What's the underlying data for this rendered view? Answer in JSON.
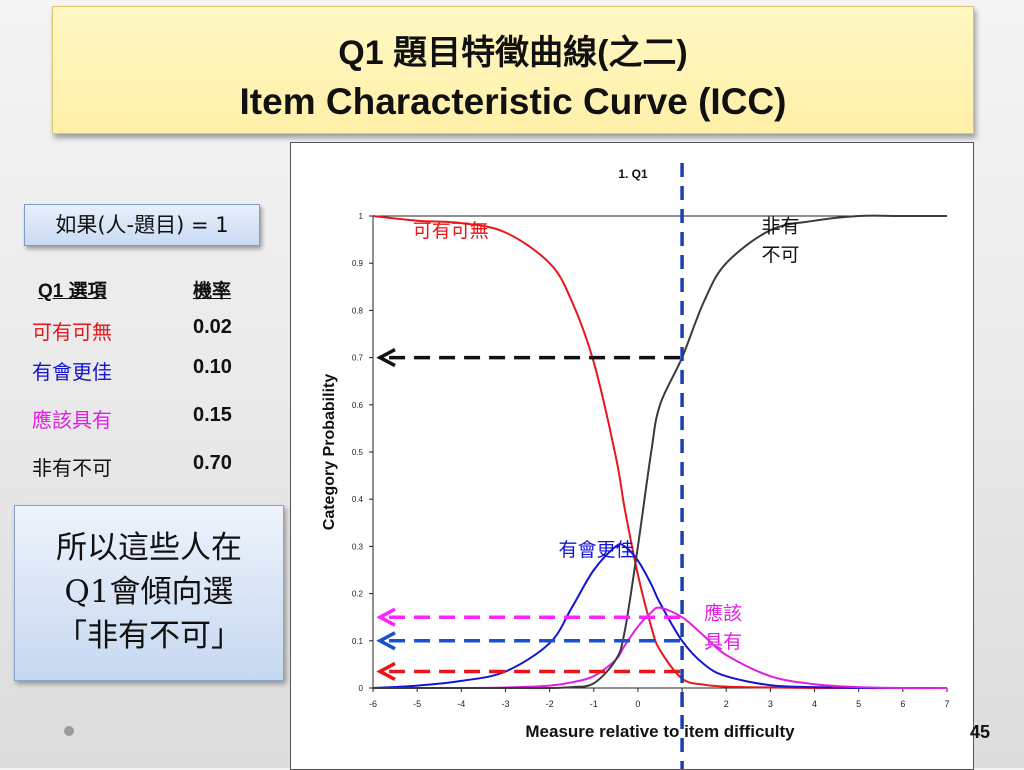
{
  "slide": {
    "title_line1": "Q1 題目特徵曲線(之二)",
    "title_line2": "Item Characteristic Curve (ICC)",
    "condition": "如果(人-題目) = 1",
    "page_number": "45"
  },
  "table": {
    "headers": [
      "Q1 選項",
      "機率"
    ],
    "rows": [
      {
        "option": "可有可無",
        "prob": "0.02",
        "color": "#e8161b"
      },
      {
        "option": "有會更佳",
        "prob": "0.10",
        "color": "#1414d2"
      },
      {
        "option": "應該具有",
        "prob": "0.15",
        "color": "#e020e0"
      },
      {
        "option": "非有不可",
        "prob": "0.70",
        "color": "#111111"
      }
    ]
  },
  "summary": {
    "lines": [
      "所以這些人在",
      "Q1會傾向選",
      "「非有不可」"
    ]
  },
  "colors": {
    "title_bg": "#fff4b5",
    "callout_bg": "#d3e1f5",
    "cat1": "#e8161b",
    "cat2": "#1414d2",
    "cat3": "#e020e0",
    "cat4": "#3a3a3a",
    "guide": "#1a3fb0"
  },
  "chart_data": {
    "type": "line",
    "title": "1. Q1",
    "xlabel": "Measure relative to item difficulty",
    "ylabel": "Category Probability",
    "xlim": [
      -6,
      7
    ],
    "ylim": [
      0,
      1
    ],
    "x_ticks": [
      "-6",
      "-5",
      "-4",
      "-3",
      "-2",
      "-1",
      "0",
      "1",
      "2",
      "3",
      "4",
      "5",
      "6",
      "7"
    ],
    "y_ticks": [
      "0",
      "0.1",
      "0.2",
      "0.3",
      "0.4",
      "0.5",
      "0.6",
      "0.7",
      "0.8",
      "0.9",
      "1"
    ],
    "x": [
      -6,
      -5,
      -4,
      -3,
      -2,
      -1.5,
      -1,
      -0.5,
      -0.3,
      0,
      0.3,
      0.5,
      1,
      1.5,
      2,
      3,
      4,
      5,
      6,
      7
    ],
    "series": [
      {
        "name": "可有可無",
        "color": "#e8161b",
        "values": [
          1.0,
          0.99,
          0.985,
          0.965,
          0.9,
          0.82,
          0.69,
          0.49,
          0.38,
          0.24,
          0.13,
          0.08,
          0.02,
          0.007,
          0.003,
          0.001,
          0.0,
          0.0,
          0.0,
          0.0
        ]
      },
      {
        "name": "有會更佳",
        "color": "#1414d2",
        "values": [
          0.0,
          0.005,
          0.015,
          0.035,
          0.095,
          0.17,
          0.25,
          0.3,
          0.3,
          0.27,
          0.22,
          0.18,
          0.1,
          0.05,
          0.025,
          0.006,
          0.002,
          0.0,
          0.0,
          0.0
        ]
      },
      {
        "name": "應該具有",
        "color": "#e020e0",
        "values": [
          0.0,
          0.0,
          0.0,
          0.001,
          0.005,
          0.012,
          0.025,
          0.06,
          0.09,
          0.13,
          0.16,
          0.17,
          0.15,
          0.11,
          0.07,
          0.025,
          0.008,
          0.002,
          0.0,
          0.0
        ]
      },
      {
        "name": "非有不可",
        "color": "#3a3a3a",
        "values": [
          0.0,
          0.0,
          0.0,
          0.0,
          0.0,
          0.002,
          0.01,
          0.06,
          0.12,
          0.3,
          0.5,
          0.6,
          0.7,
          0.82,
          0.9,
          0.97,
          0.99,
          1.0,
          1.0,
          1.0
        ]
      }
    ],
    "annotations": [
      {
        "text": "可有可無",
        "color": "#e8161b",
        "x": -5.1,
        "y": 0.955
      },
      {
        "text": "非有",
        "color": "#111111",
        "x": 2.8,
        "y": 0.965
      },
      {
        "text": "不可",
        "color": "#111111",
        "x": 2.8,
        "y": 0.905
      },
      {
        "text": "有會更佳",
        "color": "#1414d2",
        "x": -1.8,
        "y": 0.28
      },
      {
        "text": "應該",
        "color": "#e020e0",
        "x": 1.5,
        "y": 0.145
      },
      {
        "text": "具有",
        "color": "#e020e0",
        "x": 1.5,
        "y": 0.085
      }
    ],
    "guide_x": 1,
    "arrows": [
      {
        "y": 0.7,
        "color": "#111111"
      },
      {
        "y": 0.15,
        "color": "#ff22ff"
      },
      {
        "y": 0.1,
        "color": "#1a4fcf"
      },
      {
        "y": 0.035,
        "color": "#e8161b"
      }
    ],
    "grid": false,
    "legend": "none"
  }
}
